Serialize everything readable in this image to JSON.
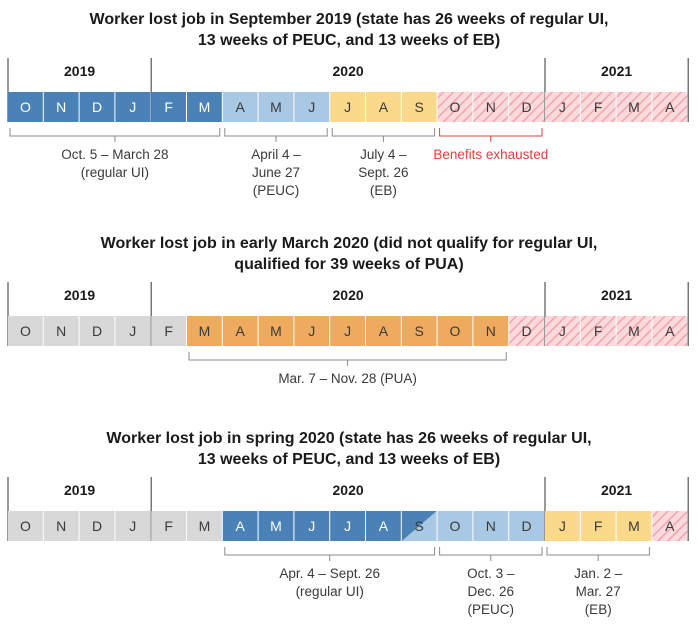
{
  "colors": {
    "dark_blue": "#4a82b8",
    "light_blue": "#a9c8e3",
    "gray": "#d8d8d8",
    "yellow": "#fbd98a",
    "orange": "#eeaa5e",
    "hatch_bg": "#fadadc",
    "hatch_line": "#f2a4aa",
    "text_light": "#ffffff",
    "text_dark": "#3a3a3a"
  },
  "panels": [
    {
      "title_lines": [
        "Worker lost job in September 2019 (state has 26 weeks of regular UI,",
        "13 weeks of PEUC, and 13 weeks of EB)"
      ],
      "years": [
        "2019",
        "2020",
        "2021"
      ],
      "months": [
        {
          "label": "O",
          "fill": "dark_blue"
        },
        {
          "label": "N",
          "fill": "dark_blue"
        },
        {
          "label": "D",
          "fill": "dark_blue"
        },
        {
          "label": "J",
          "fill": "dark_blue"
        },
        {
          "label": "F",
          "fill": "dark_blue"
        },
        {
          "label": "M",
          "fill": "dark_blue"
        },
        {
          "label": "A",
          "fill": "light_blue"
        },
        {
          "label": "M",
          "fill": "light_blue"
        },
        {
          "label": "J",
          "fill": "light_blue"
        },
        {
          "label": "J",
          "fill": "yellow"
        },
        {
          "label": "A",
          "fill": "yellow"
        },
        {
          "label": "S",
          "fill": "yellow"
        },
        {
          "label": "O",
          "fill": "hatch"
        },
        {
          "label": "N",
          "fill": "hatch"
        },
        {
          "label": "D",
          "fill": "hatch"
        },
        {
          "label": "J",
          "fill": "hatch"
        },
        {
          "label": "F",
          "fill": "hatch"
        },
        {
          "label": "M",
          "fill": "hatch"
        },
        {
          "label": "A",
          "fill": "hatch"
        }
      ],
      "annotations": [
        {
          "start": 0,
          "end": 6,
          "lines": [
            "Oct. 5 – March 28",
            "(regular UI)"
          ]
        },
        {
          "start": 6,
          "end": 9,
          "lines": [
            "April 4 –",
            "June 27",
            "(PEUC)"
          ]
        },
        {
          "start": 9,
          "end": 12,
          "lines": [
            "July 4 –",
            "Sept. 26",
            "(EB)"
          ]
        },
        {
          "start": 12,
          "end": 15,
          "lines": [
            "Benefits exhausted"
          ],
          "red": true
        }
      ]
    },
    {
      "title_lines": [
        "Worker lost job in early March 2020 (did not qualify for regular UI,",
        "qualified for 39 weeks of PUA)"
      ],
      "years": [
        "2019",
        "2020",
        "2021"
      ],
      "months": [
        {
          "label": "O",
          "fill": "gray"
        },
        {
          "label": "N",
          "fill": "gray"
        },
        {
          "label": "D",
          "fill": "gray"
        },
        {
          "label": "J",
          "fill": "gray"
        },
        {
          "label": "F",
          "fill": "gray"
        },
        {
          "label": "M",
          "fill": "orange"
        },
        {
          "label": "A",
          "fill": "orange"
        },
        {
          "label": "M",
          "fill": "orange"
        },
        {
          "label": "J",
          "fill": "orange"
        },
        {
          "label": "J",
          "fill": "orange"
        },
        {
          "label": "A",
          "fill": "orange"
        },
        {
          "label": "S",
          "fill": "orange"
        },
        {
          "label": "O",
          "fill": "orange"
        },
        {
          "label": "N",
          "fill": "orange"
        },
        {
          "label": "D",
          "fill": "hatch"
        },
        {
          "label": "J",
          "fill": "hatch"
        },
        {
          "label": "F",
          "fill": "hatch"
        },
        {
          "label": "M",
          "fill": "hatch"
        },
        {
          "label": "A",
          "fill": "hatch"
        }
      ],
      "annotations": [
        {
          "start": 5,
          "end": 14,
          "lines": [
            "Mar. 7 – Nov. 28 (PUA)"
          ]
        }
      ]
    },
    {
      "title_lines": [
        "Worker lost job in spring 2020 (state has 26 weeks of regular UI,",
        "13 weeks of PEUC, and 13 weeks of EB)"
      ],
      "years": [
        "2019",
        "2020",
        "2021"
      ],
      "months": [
        {
          "label": "O",
          "fill": "gray"
        },
        {
          "label": "N",
          "fill": "gray"
        },
        {
          "label": "D",
          "fill": "gray"
        },
        {
          "label": "J",
          "fill": "gray"
        },
        {
          "label": "F",
          "fill": "gray"
        },
        {
          "label": "M",
          "fill": "gray"
        },
        {
          "label": "A",
          "fill": "dark_blue"
        },
        {
          "label": "M",
          "fill": "dark_blue"
        },
        {
          "label": "J",
          "fill": "dark_blue"
        },
        {
          "label": "J",
          "fill": "dark_blue"
        },
        {
          "label": "A",
          "fill": "dark_blue"
        },
        {
          "label": "S",
          "fill": "split"
        },
        {
          "label": "O",
          "fill": "light_blue"
        },
        {
          "label": "N",
          "fill": "light_blue"
        },
        {
          "label": "D",
          "fill": "light_blue"
        },
        {
          "label": "J",
          "fill": "yellow"
        },
        {
          "label": "F",
          "fill": "yellow"
        },
        {
          "label": "M",
          "fill": "yellow"
        },
        {
          "label": "A",
          "fill": "hatch"
        }
      ],
      "annotations": [
        {
          "start": 6,
          "end": 12,
          "lines": [
            "Apr. 4 – Sept. 26",
            "(regular UI)"
          ]
        },
        {
          "start": 12,
          "end": 15,
          "lines": [
            "Oct. 3 –",
            "Dec. 26",
            "(PEUC)"
          ]
        },
        {
          "start": 15,
          "end": 18,
          "lines": [
            "Jan. 2 –",
            "Mar. 27",
            "(EB)"
          ]
        }
      ]
    }
  ]
}
